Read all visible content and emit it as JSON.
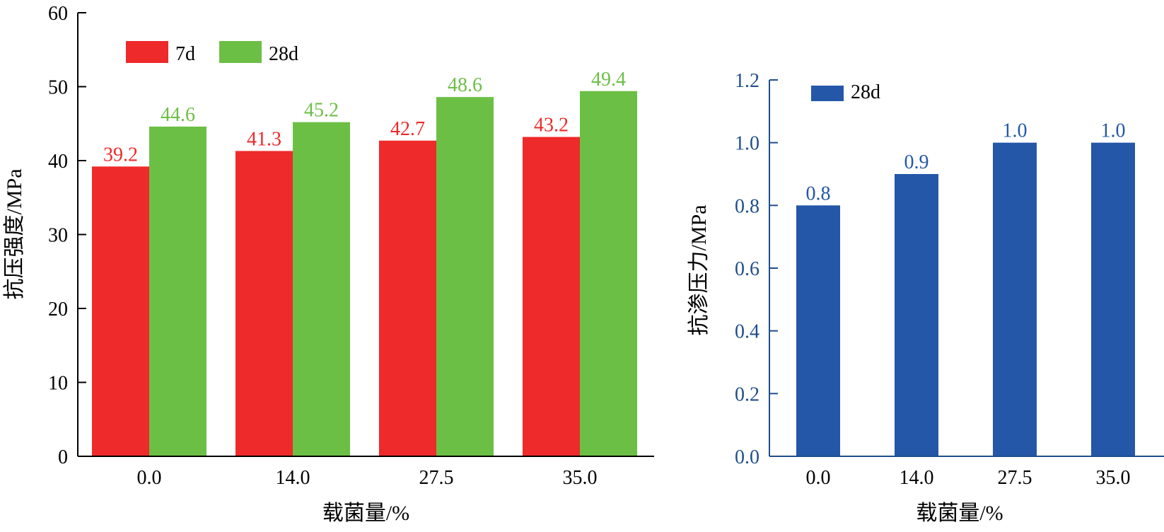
{
  "chart_data": [
    {
      "type": "bar",
      "title": "",
      "xlabel": "载菌量/%",
      "ylabel": "抗压强度/MPa",
      "categories": [
        "0.0",
        "14.0",
        "27.5",
        "35.0"
      ],
      "ylim": [
        0,
        60
      ],
      "yticks": [
        "0",
        "10",
        "20",
        "30",
        "40",
        "50",
        "60"
      ],
      "legend_position": "top-left",
      "grid": false,
      "series": [
        {
          "name": "7d",
          "values": [
            39.2,
            41.3,
            42.7,
            43.2
          ],
          "labels": [
            "39.2",
            "41.3",
            "42.7",
            "43.2"
          ],
          "color": "#ee2a2a"
        },
        {
          "name": "28d",
          "values": [
            44.6,
            45.2,
            48.6,
            49.4
          ],
          "labels": [
            "44.6",
            "45.2",
            "48.6",
            "49.4"
          ],
          "color": "#6cbf45"
        }
      ]
    },
    {
      "type": "bar",
      "title": "",
      "xlabel": "载菌量/%",
      "ylabel": "抗渗压力/MPa",
      "categories": [
        "0.0",
        "14.0",
        "27.5",
        "35.0"
      ],
      "ylim": [
        0,
        1.2
      ],
      "yticks": [
        "0.0",
        "0.2",
        "0.4",
        "0.6",
        "0.8",
        "1.0",
        "1.2"
      ],
      "legend_position": "top-left",
      "grid": false,
      "axis_color": "#1f4e8c",
      "series": [
        {
          "name": "28d",
          "values": [
            0.8,
            0.9,
            1.0,
            1.0
          ],
          "labels": [
            "0.8",
            "0.9",
            "1.0",
            "1.0"
          ],
          "color": "#2457a8"
        }
      ]
    }
  ]
}
